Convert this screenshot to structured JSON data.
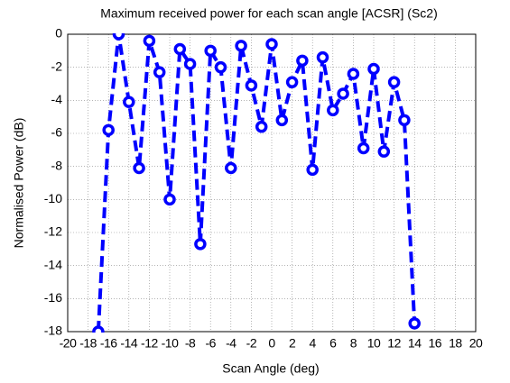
{
  "chart_data": {
    "type": "line",
    "title": "Maximum received power for each scan angle [ACSR] (Sc2)",
    "xlabel": "Scan Angle (deg)",
    "ylabel": "Normalised Power (dB)",
    "x": [
      -17,
      -16,
      -15,
      -14,
      -13,
      -12,
      -11,
      -10,
      -9,
      -8,
      -7,
      -6,
      -5,
      -4,
      -3,
      -2,
      -1,
      0,
      1,
      2,
      3,
      4,
      5,
      6,
      7,
      8,
      9,
      10,
      11,
      12,
      13,
      14
    ],
    "series": [
      {
        "name": "ACSR",
        "color": "#0000ff",
        "values": [
          -18,
          -5.8,
          0,
          -4.1,
          -8.1,
          -0.4,
          -2.3,
          -10,
          -0.9,
          -1.8,
          -12.7,
          -1.0,
          -2.0,
          -8.1,
          -0.7,
          -3.1,
          -5.6,
          -0.6,
          -5.2,
          -2.9,
          -1.6,
          -8.2,
          -1.4,
          -4.6,
          -3.6,
          -2.4,
          -6.9,
          -2.1,
          -7.1,
          -2.9,
          -5.2,
          -17.5
        ]
      }
    ],
    "xlim": [
      -20,
      20
    ],
    "xticks": [
      -20,
      -18,
      -16,
      -14,
      -12,
      -10,
      -8,
      -6,
      -4,
      -2,
      0,
      2,
      4,
      6,
      8,
      10,
      12,
      14,
      16,
      18,
      20
    ],
    "ylim": [
      -18,
      0
    ],
    "yticks": [
      -18,
      -16,
      -14,
      -12,
      -10,
      -8,
      -6,
      -4,
      -2,
      0
    ],
    "grid": true
  }
}
